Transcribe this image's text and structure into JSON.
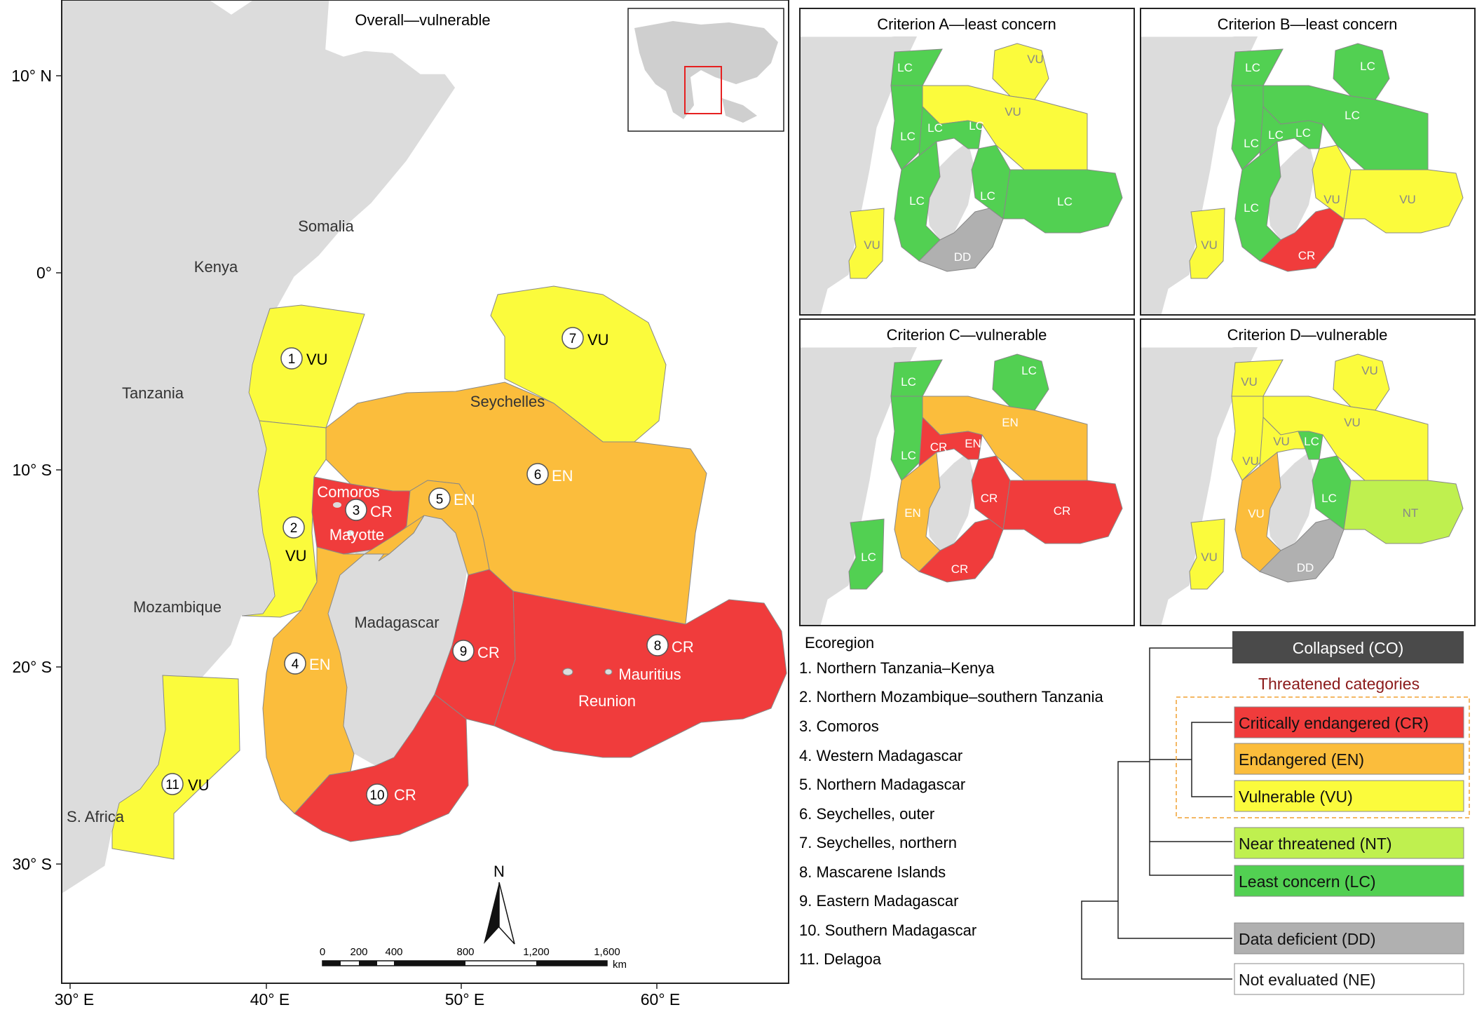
{
  "main_map": {
    "title": "Overall—vulnerable",
    "axis_left": [
      "10° N",
      "0°",
      "10° S",
      "20° S",
      "30° S"
    ],
    "axis_bottom": [
      "30° E",
      "40° E",
      "50° E",
      "60° E"
    ],
    "countries": [
      "Somalia",
      "Kenya",
      "Tanzania",
      "Mozambique",
      "Madagascar",
      "S. Africa",
      "Seychelles",
      "Comoros",
      "Mayotte",
      "Mauritius",
      "Reunion"
    ],
    "regions": [
      {
        "num": "1",
        "status": "VU"
      },
      {
        "num": "2",
        "status": "VU"
      },
      {
        "num": "3",
        "status": "CR"
      },
      {
        "num": "4",
        "status": "EN"
      },
      {
        "num": "5",
        "status": "EN"
      },
      {
        "num": "6",
        "status": "EN"
      },
      {
        "num": "7",
        "status": "VU"
      },
      {
        "num": "8",
        "status": "CR"
      },
      {
        "num": "9",
        "status": "CR"
      },
      {
        "num": "10",
        "status": "CR"
      },
      {
        "num": "11",
        "status": "VU"
      }
    ],
    "north": "N",
    "scale_labels": [
      "0",
      "200",
      "400",
      "800",
      "1,200",
      "1,600"
    ],
    "scale_unit": "km"
  },
  "panels": [
    {
      "title": "Criterion A—least concern",
      "labels": [
        "LC",
        "LC",
        "LC",
        "LC",
        "LC",
        "LC",
        "LC",
        "VU",
        "VU",
        "DD",
        "VU"
      ]
    },
    {
      "title": "Criterion B—least concern",
      "labels": [
        "LC",
        "LC",
        "LC",
        "LC",
        "LC",
        "LC",
        "LC",
        "VU",
        "VU",
        "CR",
        "VU"
      ]
    },
    {
      "title": "Criterion C—vulnerable",
      "labels": [
        "LC",
        "LC",
        "CR",
        "EN",
        "EN",
        "EN",
        "LC",
        "CR",
        "CR",
        "CR",
        "LC"
      ]
    },
    {
      "title": "Criterion D—vulnerable",
      "labels": [
        "VU",
        "VU",
        "VU",
        "LC",
        "VU",
        "VU",
        "VU",
        "LC",
        "NT",
        "DD",
        "VU"
      ]
    }
  ],
  "ecoregion": {
    "heading": "Ecoregion",
    "items": [
      "1. Northern Tanzania–Kenya",
      "2. Northern Mozambique–southern Tanzania",
      "3. Comoros",
      "4. Western Madagascar",
      "5. Northern Madagascar",
      "6. Seychelles, outer",
      "7. Seychelles, northern",
      "8. Mascarene Islands",
      "9. Eastern Madagascar",
      "10. Southern Madagascar",
      "11. Delagoa"
    ]
  },
  "legend": {
    "collapsed": "Collapsed (CO)",
    "threatened_heading": "Threatened categories",
    "cr": "Critically endangered (CR)",
    "en": "Endangered (EN)",
    "vu": "Vulnerable (VU)",
    "nt": "Near threatened (NT)",
    "lc": "Least concern (LC)",
    "dd": "Data deficient (DD)",
    "ne": "Not evaluated (NE)"
  },
  "colors": {
    "CR": "#f03c3c",
    "EN": "#fbbd3c",
    "VU": "#fbfb3c",
    "NT": "#bff04f",
    "LC": "#52d052",
    "DD": "#b0b0b0",
    "CO": "#4a4a4a",
    "land": "#dcdcdc"
  }
}
